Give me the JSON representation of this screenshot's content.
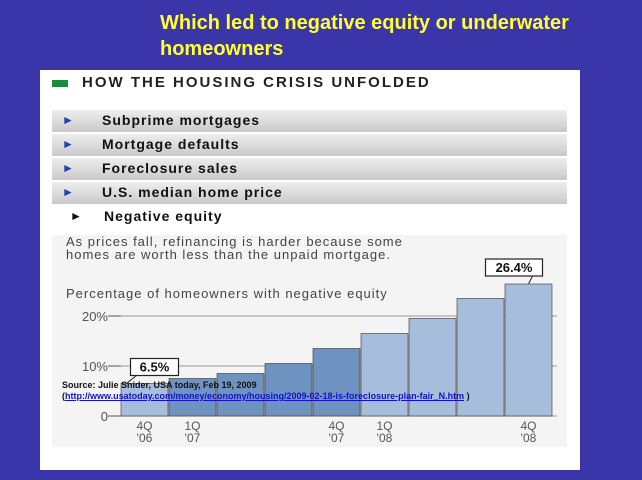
{
  "slide": {
    "title": "Which led to negative equity or underwater homeowners"
  },
  "panel": {
    "title": "HOW THE HOUSING CRISIS UNFOLDED",
    "rows": [
      {
        "label": "Subprime mortgages",
        "active": false
      },
      {
        "label": "Mortgage defaults",
        "active": false
      },
      {
        "label": "Foreclosure sales",
        "active": false
      },
      {
        "label": "U.S. median home price",
        "active": false
      },
      {
        "label": "Negative equity",
        "active": true
      }
    ],
    "description": "As prices fall, refinancing is harder because some homes are worth less than the unpaid mortgage.",
    "subtitle": "Percentage of homeowners with negative equity"
  },
  "chart_data": {
    "type": "bar",
    "ylim": [
      0,
      30
    ],
    "yticks": [
      {
        "value": 0,
        "label": "0"
      },
      {
        "value": 10,
        "label": "10%"
      },
      {
        "value": 20,
        "label": "20%"
      }
    ],
    "values": [
      6.5,
      7.5,
      8.5,
      10.5,
      13.5,
      16.5,
      19.5,
      23.5,
      26.4
    ],
    "bar_colors": [
      "#a6bddb",
      "#6f93c0",
      "#6f93c0",
      "#6f93c0",
      "#6f93c0",
      "#a6bddb",
      "#a6bddb",
      "#a6bddb",
      "#a6bddb"
    ],
    "x_tick_labels": [
      {
        "index": 0,
        "line1": "4Q",
        "line2": "'06"
      },
      {
        "index": 1,
        "line1": "1Q",
        "line2": "'07"
      },
      {
        "index": 4,
        "line1": "4Q",
        "line2": "'07"
      },
      {
        "index": 5,
        "line1": "1Q",
        "line2": "'08"
      },
      {
        "index": 8,
        "line1": "4Q",
        "line2": "'08"
      }
    ],
    "annotations": [
      {
        "index": 0,
        "text": "6.5%"
      },
      {
        "index": 8,
        "text": "26.4%"
      }
    ]
  },
  "source": {
    "line1": "Source: Julie Snider, USA today, Feb 19, 2009",
    "open_paren": "(",
    "url": "http://www.usatoday.com/money/economy/housing/2009-02-18-is-foreclosure-plan-fair_N.htm",
    "close_paren": " )"
  }
}
